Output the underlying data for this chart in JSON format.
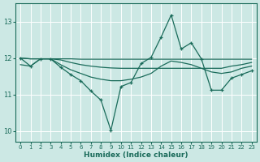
{
  "xlabel": "Humidex (Indice chaleur)",
  "background_color": "#cce8e4",
  "grid_color": "#ffffff",
  "line_color": "#1a6b5a",
  "xlim": [
    -0.5,
    23.5
  ],
  "ylim": [
    9.7,
    13.5
  ],
  "yticks": [
    10,
    11,
    12,
    13
  ],
  "xticks": [
    0,
    1,
    2,
    3,
    4,
    5,
    6,
    7,
    8,
    9,
    10,
    11,
    12,
    13,
    14,
    15,
    16,
    17,
    18,
    19,
    20,
    21,
    22,
    23
  ],
  "main_x": [
    0,
    1,
    2,
    3,
    4,
    5,
    6,
    7,
    8,
    9,
    10,
    11,
    12,
    13,
    14,
    15,
    16,
    17,
    18,
    19,
    20,
    21,
    22,
    23
  ],
  "main_y": [
    12.0,
    11.78,
    11.98,
    11.98,
    11.75,
    11.55,
    11.38,
    11.1,
    10.85,
    10.02,
    11.22,
    11.33,
    11.85,
    12.02,
    12.58,
    13.18,
    12.25,
    12.42,
    11.98,
    11.12,
    11.12,
    11.45,
    11.55,
    11.65
  ],
  "line1_x": [
    0,
    1,
    2,
    3,
    4,
    5,
    6,
    7,
    8,
    9,
    10,
    11,
    12,
    13,
    14,
    15,
    16,
    17,
    18,
    19,
    20,
    21,
    22,
    23
  ],
  "line1_y": [
    12.0,
    11.98,
    11.98,
    11.98,
    11.98,
    11.98,
    11.97,
    11.97,
    11.97,
    11.97,
    11.97,
    11.97,
    11.97,
    11.97,
    11.97,
    11.97,
    11.97,
    11.97,
    11.97,
    11.97,
    11.97,
    11.97,
    11.97,
    11.97
  ],
  "line2_x": [
    0,
    1,
    2,
    3,
    4,
    5,
    6,
    7,
    8,
    9,
    10,
    11,
    12,
    13,
    14,
    15,
    16,
    17,
    18,
    19,
    20,
    21,
    22,
    23
  ],
  "line2_y": [
    12.0,
    11.98,
    11.98,
    11.98,
    11.95,
    11.88,
    11.82,
    11.78,
    11.75,
    11.73,
    11.72,
    11.72,
    11.72,
    11.72,
    11.72,
    11.72,
    11.72,
    11.72,
    11.72,
    11.72,
    11.72,
    11.78,
    11.82,
    11.88
  ],
  "line3_x": [
    0,
    1,
    2,
    3,
    4,
    5,
    6,
    7,
    8,
    9,
    10,
    11,
    12,
    13,
    14,
    15,
    16,
    17,
    18,
    19,
    20,
    21,
    22,
    23
  ],
  "line3_y": [
    11.82,
    11.78,
    11.98,
    11.98,
    11.82,
    11.68,
    11.58,
    11.48,
    11.42,
    11.38,
    11.38,
    11.42,
    11.48,
    11.58,
    11.78,
    11.92,
    11.88,
    11.82,
    11.72,
    11.62,
    11.58,
    11.62,
    11.72,
    11.78
  ]
}
